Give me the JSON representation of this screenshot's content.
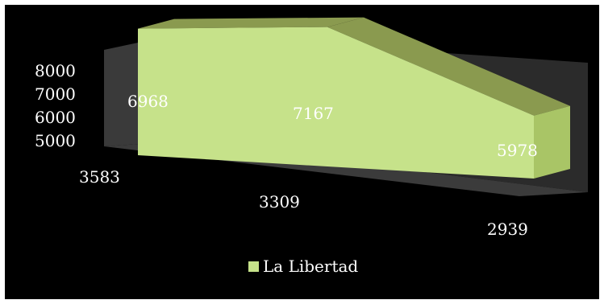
{
  "chart_data": {
    "type": "area",
    "style": "3d",
    "categories": [
      "3583",
      "3309",
      "2939"
    ],
    "series": [
      {
        "name": "La Libertad",
        "values": [
          6968,
          7167,
          5978
        ],
        "color": "#c6e28a"
      }
    ],
    "data_labels": [
      "6968",
      "7167",
      "5978"
    ],
    "y_ticks": [
      "5000",
      "6000",
      "7000",
      "8000"
    ],
    "ylim": [
      5000,
      8000
    ],
    "legend_position": "bottom",
    "grid": false,
    "colors": {
      "background": "#000000",
      "area_front": "#c6e28a",
      "area_top": "#8a9a4f",
      "area_side": "#a9c566",
      "back_wall": "#2b2b2b",
      "side_wall": "#3a3a3a",
      "floor": "#3b3b3b",
      "text": "#ffffff"
    }
  }
}
